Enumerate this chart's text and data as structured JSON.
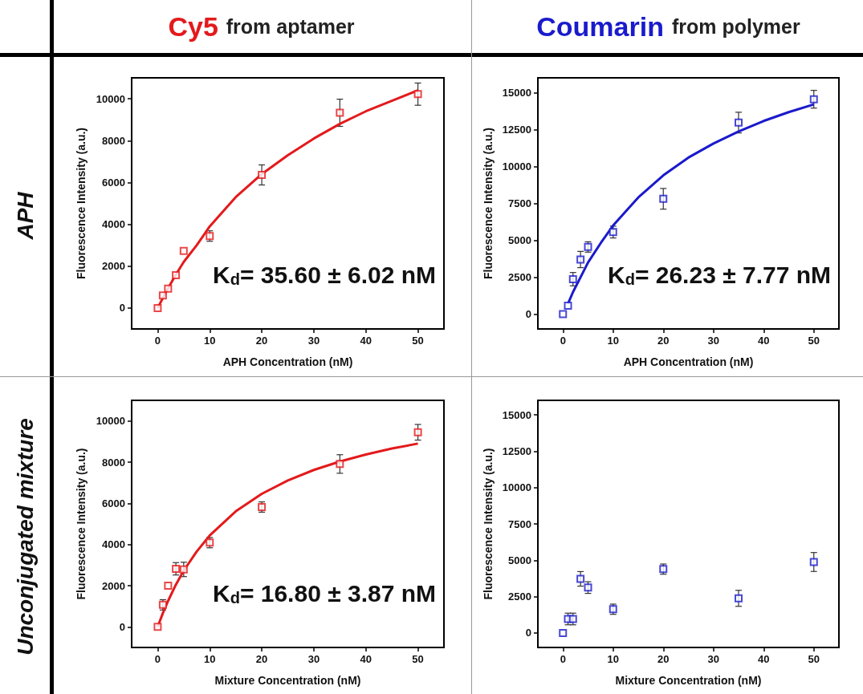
{
  "chart_data": [
    {
      "type": "scatter",
      "title": "Cy5 from aptamer",
      "xlabel": "APH Concentration (nM)",
      "ylabel": "Fluorescence Intensity (a.u.)",
      "annotations": [
        "APH",
        "K$_{d}$= 35.60 ± 6.02 nM"
      ],
      "grid": false,
      "xlim": [
        -5,
        55
      ],
      "xticks": [
        0,
        10,
        20,
        30,
        40,
        50
      ],
      "ylim": [
        -1000,
        11000
      ],
      "yticks": [
        0,
        2000,
        4000,
        6000,
        8000,
        10000
      ],
      "series": [
        {
          "color": "#e31a1c",
          "marker": "square",
          "x": [
            0,
            1,
            2,
            3.5,
            5,
            10,
            20,
            35,
            50
          ],
          "values": [
            0,
            600,
            930,
            1570,
            2730,
            3440,
            6360,
            9330,
            10220
          ],
          "errors": [
            null,
            null,
            null,
            null,
            null,
            250,
            480,
            650,
            530
          ]
        },
        {
          "type": "line",
          "color": "#e31a1c",
          "x": [
            0,
            1,
            2,
            3.5,
            5,
            7.5,
            10,
            15,
            20,
            25,
            30,
            35,
            40,
            45,
            50
          ],
          "values": [
            0,
            480,
            950,
            1600,
            2200,
            3000,
            3900,
            5300,
            6400,
            7300,
            8100,
            8800,
            9400,
            9900,
            10400
          ]
        }
      ]
    },
    {
      "type": "scatter",
      "title": "Coumarin from polymer",
      "xlabel": "APH Concentration (nM)",
      "ylabel": "Fluorescence Intensity (a.u.)",
      "annotations": [
        "K$_{d}$= 26.23 ± 7.77 nM"
      ],
      "grid": false,
      "xlim": [
        -5,
        55
      ],
      "xticks": [
        0,
        10,
        20,
        30,
        40,
        50
      ],
      "ylim": [
        -1000,
        16000
      ],
      "yticks": [
        0,
        2500,
        5000,
        7500,
        10000,
        12500,
        15000
      ],
      "series": [
        {
          "color": "#1a1acc",
          "marker": "square",
          "x": [
            0,
            1,
            2,
            3.5,
            5,
            10,
            20,
            35,
            50
          ],
          "values": [
            0,
            580,
            2370,
            3700,
            4550,
            5560,
            7810,
            12970,
            14550
          ],
          "errors": [
            null,
            null,
            450,
            550,
            350,
            400,
            700,
            700,
            600
          ]
        },
        {
          "type": "line",
          "color": "#1a1acc",
          "x": [
            1,
            2,
            3.5,
            5,
            7.5,
            10,
            15,
            20,
            25,
            30,
            35,
            40,
            45,
            50
          ],
          "values": [
            700,
            1500,
            2500,
            3500,
            4800,
            6000,
            7900,
            9400,
            10600,
            11550,
            12370,
            13080,
            13680,
            14200
          ]
        }
      ]
    },
    {
      "type": "scatter",
      "xlabel": "Mixture Concentration (nM)",
      "ylabel": "Fluorescence Intensity (a.u.)",
      "annotations": [
        "Unconjugated mixture",
        "K$_{d}$= 16.80 ± 3.87 nM"
      ],
      "grid": false,
      "xlim": [
        -5,
        55
      ],
      "xticks": [
        0,
        10,
        20,
        30,
        40,
        50
      ],
      "ylim": [
        -1000,
        11000
      ],
      "yticks": [
        0,
        2000,
        4000,
        6000,
        8000,
        10000
      ],
      "series": [
        {
          "color": "#e31a1c",
          "marker": "square",
          "x": [
            0,
            1,
            2,
            3.5,
            5,
            10,
            20,
            35,
            50
          ],
          "values": [
            0,
            1070,
            2000,
            2820,
            2790,
            4090,
            5820,
            7910,
            9450
          ],
          "errors": [
            null,
            250,
            null,
            300,
            350,
            250,
            250,
            450,
            380
          ]
        },
        {
          "type": "line",
          "color": "#e31a1c",
          "x": [
            0,
            1,
            2,
            3.5,
            5,
            7.5,
            10,
            15,
            20,
            25,
            30,
            35,
            40,
            45,
            50
          ],
          "values": [
            0,
            670,
            1260,
            2050,
            2730,
            3660,
            4440,
            5610,
            6460,
            7110,
            7620,
            8030,
            8370,
            8660,
            8900
          ]
        }
      ]
    },
    {
      "type": "scatter",
      "xlabel": "Mixture Concentration (nM)",
      "ylabel": "Fluorescence Intensity (a.u.)",
      "grid": false,
      "xlim": [
        -5,
        55
      ],
      "xticks": [
        0,
        10,
        20,
        30,
        40,
        50
      ],
      "ylim": [
        -1000,
        16000
      ],
      "yticks": [
        0,
        2500,
        5000,
        7500,
        10000,
        12500,
        15000
      ],
      "series": [
        {
          "color": "#1a1acc",
          "marker": "square",
          "x": [
            0,
            1,
            2,
            3.5,
            5,
            10,
            20,
            35,
            50
          ],
          "values": [
            0,
            960,
            960,
            3720,
            3120,
            1630,
            4390,
            2380,
            4880
          ],
          "errors": [
            null,
            400,
            400,
            500,
            400,
            350,
            350,
            550,
            650
          ]
        }
      ]
    }
  ]
}
